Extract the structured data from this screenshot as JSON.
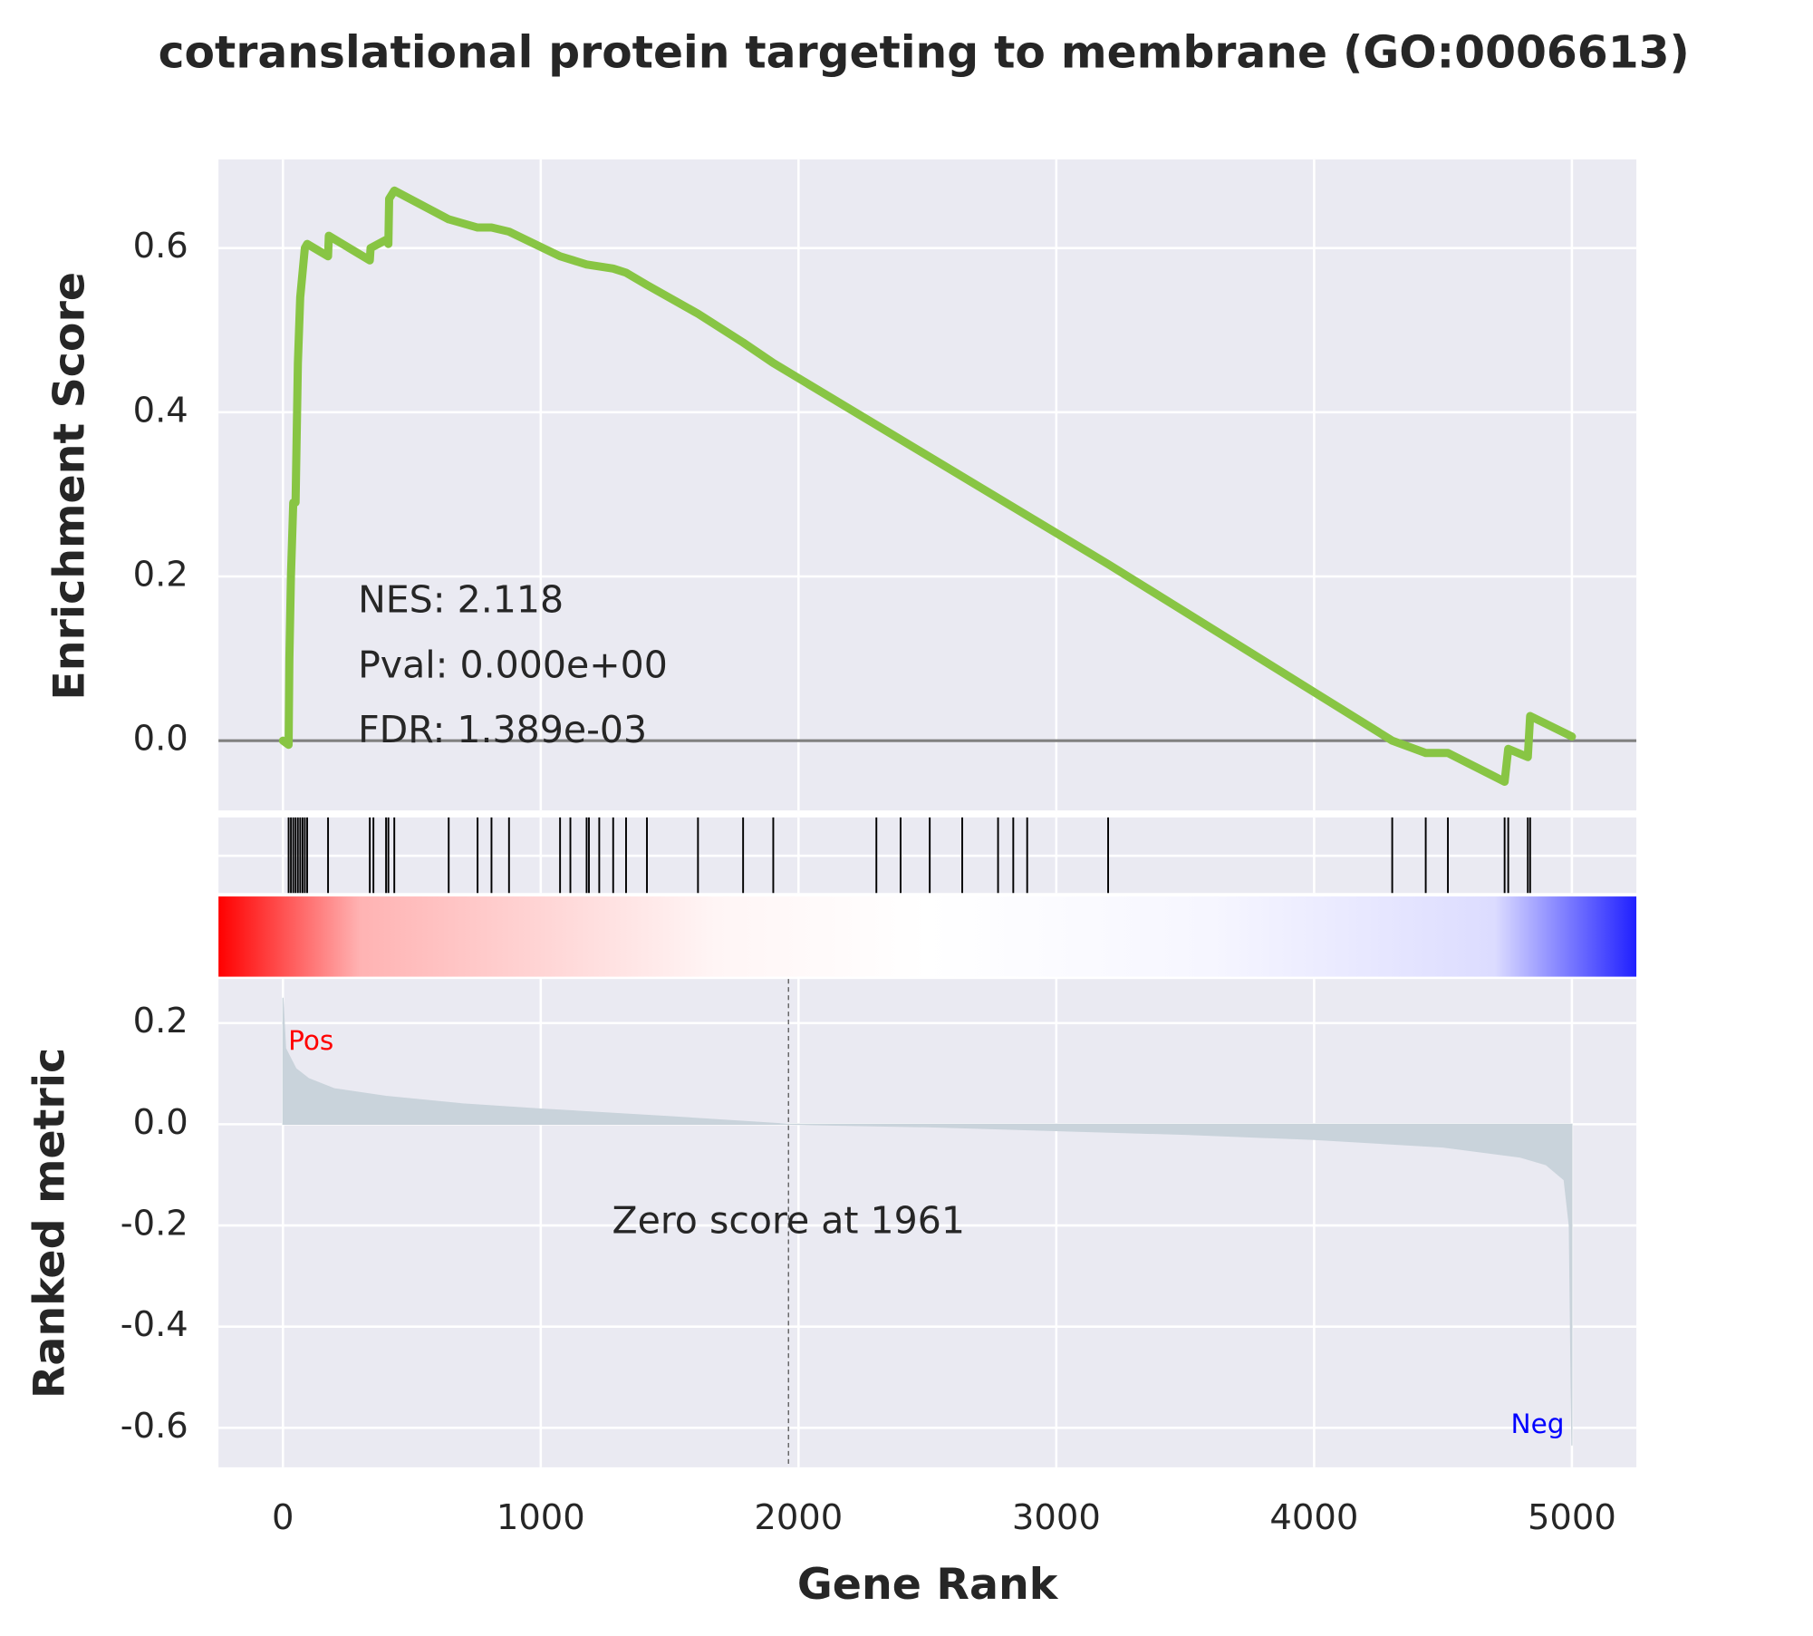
{
  "chart_data": [
    {
      "type": "line",
      "title": "cotranslational protein targeting to membrane (GO:0006613)",
      "ylabel": "Enrichment Score",
      "annotations": [
        "NES: 2.118",
        "Pval: 0.000e+00",
        "FDR: 1.389e-03"
      ],
      "x": [
        0,
        22,
        25,
        31,
        40,
        49,
        58,
        67,
        76,
        85,
        94,
        175,
        178,
        337,
        340,
        400,
        409,
        412,
        432,
        643,
        755,
        809,
        877,
        1075,
        1178,
        1281,
        1331,
        1412,
        1610,
        1785,
        1902,
        3201,
        4303,
        4433,
        4519,
        4739,
        4753,
        4829,
        4838,
        5000
      ],
      "series": [
        {
          "name": "Enrichment Score",
          "color": "#88c544",
          "values": [
            0,
            -0.005,
            0.1,
            0.2,
            0.29,
            0.29,
            0.46,
            0.54,
            0.57,
            0.6,
            0.605,
            0.59,
            0.615,
            0.585,
            0.6,
            0.61,
            0.605,
            0.66,
            0.67,
            0.635,
            0.625,
            0.625,
            0.62,
            0.59,
            0.58,
            0.575,
            0.57,
            0.555,
            0.52,
            0.485,
            0.46,
            0.215,
            0,
            -0.015,
            -0.015,
            -0.05,
            -0.01,
            -0.02,
            0.03,
            0.005
          ]
        }
      ],
      "hits": [
        22,
        31,
        40,
        49,
        58,
        67,
        76,
        85,
        94,
        175,
        337,
        351,
        400,
        409,
        432,
        643,
        755,
        809,
        877,
        1075,
        1115,
        1178,
        1187,
        1227,
        1281,
        1331,
        1412,
        1610,
        1785,
        1902,
        2302,
        2396,
        2509,
        2635,
        2774,
        2833,
        2887,
        3201,
        4303,
        4433,
        4519,
        4739,
        4753,
        4829,
        4838
      ],
      "xlim": [
        -250,
        5250
      ],
      "ylim": [
        -0.085,
        0.708
      ],
      "xticks": [
        0,
        1000,
        2000,
        3000,
        4000,
        5000
      ],
      "yticks": [
        {
          "value": 0,
          "label": "0.0"
        },
        0.2,
        0.4,
        0.6
      ],
      "grid": true
    },
    {
      "type": "area",
      "ylabel": "Ranked metric",
      "xlabel": "Gene Rank",
      "annotation": "Zero score at 1961",
      "zero_score_line": 1961,
      "pos_label": "Pos",
      "neg_label": "Neg",
      "x": [
        0,
        10,
        50,
        100,
        200,
        400,
        700,
        1000,
        1500,
        1961,
        2500,
        3500,
        4000,
        4500,
        4800,
        4900,
        4970,
        4990,
        5000
      ],
      "series": [
        {
          "name": "Ranked metric",
          "color": "#c9d3db",
          "values": [
            0.25,
            0.15,
            0.11,
            0.09,
            0.07,
            0.055,
            0.04,
            0.03,
            0.015,
            0,
            -0.005,
            -0.02,
            -0.03,
            -0.045,
            -0.065,
            -0.08,
            -0.11,
            -0.2,
            -0.635
          ]
        }
      ],
      "xlim": [
        -250,
        5250
      ],
      "ylim": [
        -0.678,
        0.287
      ],
      "xticks": [
        0,
        1000,
        2000,
        3000,
        4000,
        5000
      ],
      "yticks": [
        -0.6,
        -0.4,
        -0.2,
        {
          "value": 0,
          "label": "0.0"
        },
        0.2
      ],
      "grid": true
    }
  ]
}
